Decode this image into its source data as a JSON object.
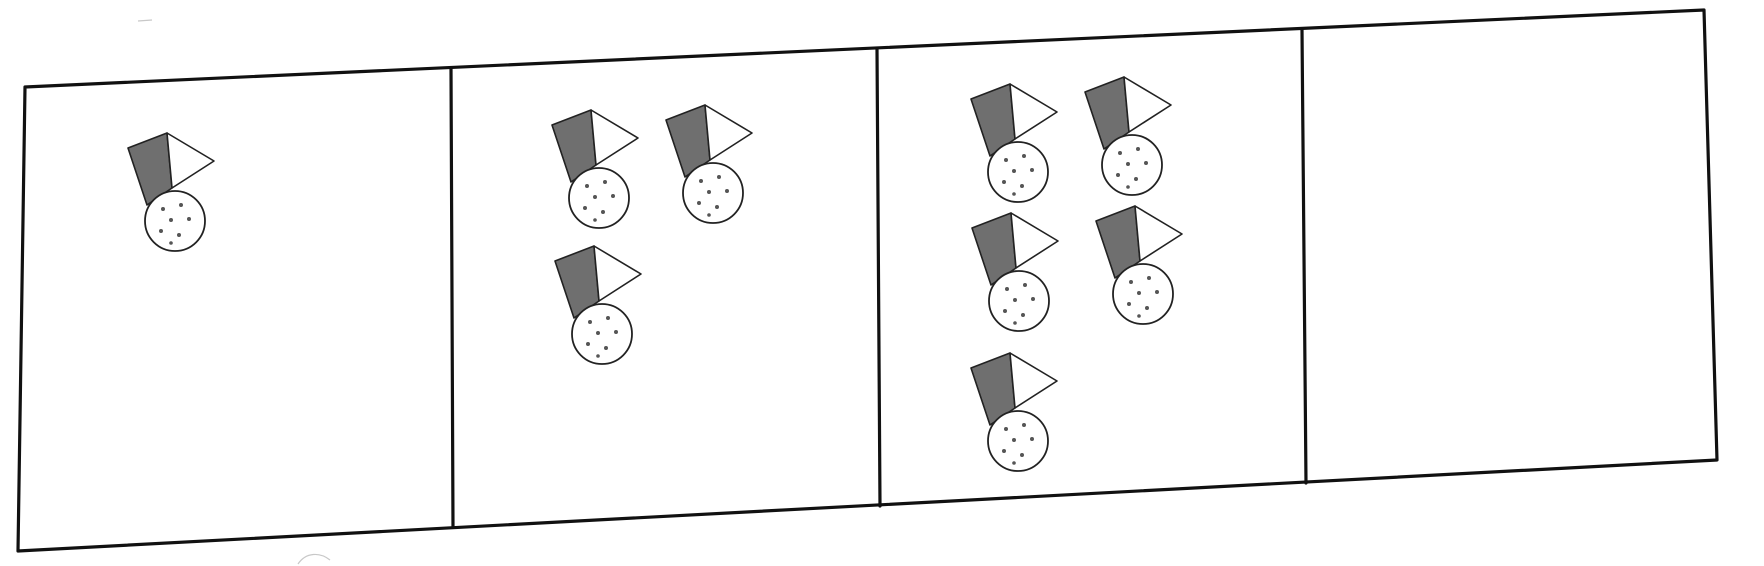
{
  "sequence": {
    "panels": [
      {
        "figure_count": 1
      },
      {
        "figure_count": 3
      },
      {
        "figure_count": 5
      },
      {
        "figure_count": null
      }
    ]
  },
  "colors": {
    "outline": "#111111",
    "cap_dark": "#6f6f6f",
    "cap_light": "#ffffff",
    "head_fill": "#ffffff",
    "dot": "#555555"
  },
  "icons": {
    "figure": "clown-figure-icon"
  }
}
